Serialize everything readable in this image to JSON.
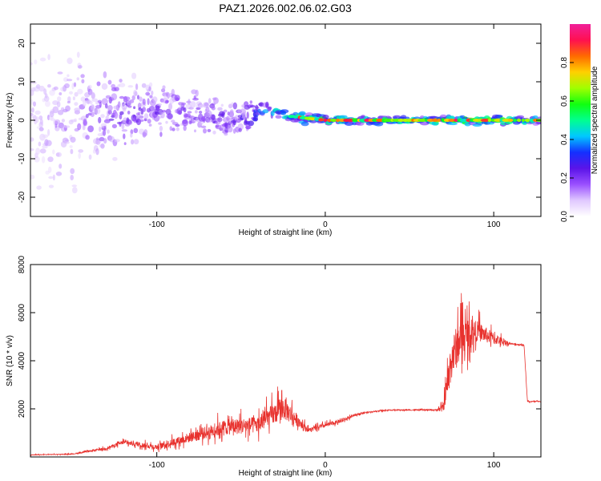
{
  "chart_data": [
    {
      "type": "heatmap",
      "title": "PAZ1.2026.002.06.02.G03",
      "xlabel": "Height of straight line (km)",
      "ylabel": "Frequency (Hz)",
      "xlim": [
        -175,
        128
      ],
      "ylim": [
        -25,
        25
      ],
      "xticks": [
        -100,
        0,
        100
      ],
      "xtick_labels": [
        "-100",
        "0",
        "100"
      ],
      "yticks": [
        -20,
        -10,
        0,
        10,
        20
      ],
      "ytick_labels": [
        "-20",
        "-10",
        "0",
        "10",
        "20"
      ],
      "colorbar": {
        "label": "Normalized spectral amplitude",
        "range": [
          0,
          1
        ],
        "ticks": [
          0.0,
          0.2,
          0.4,
          0.6,
          0.8
        ],
        "tick_labels": [
          "0.0",
          "0.2",
          "0.4",
          "0.6",
          "0.8"
        ],
        "colors": [
          "#ffffff",
          "#e0c8ff",
          "#9a50ff",
          "#5a14e8",
          "#1430ff",
          "#00c8ff",
          "#00ff90",
          "#10ff10",
          "#a0ff00",
          "#ffd000",
          "#ff6a00",
          "#ff1050",
          "#f0209a"
        ]
      },
      "frequency_band": {
        "x": [
          -175,
          -150,
          -125,
          -100,
          -75,
          -50,
          -35,
          -20,
          0,
          50,
          75,
          100,
          128
        ],
        "center": [
          0,
          1,
          2,
          2,
          1,
          0,
          3,
          1,
          0,
          0,
          0,
          0,
          0
        ],
        "half_width": [
          24,
          22,
          14,
          10,
          8,
          6,
          3,
          2,
          1.5,
          1.5,
          1.5,
          1.5,
          1.5
        ],
        "peak_amplitude": [
          0.12,
          0.18,
          0.25,
          0.25,
          0.25,
          0.3,
          0.45,
          0.6,
          0.7,
          0.6,
          0.75,
          0.7,
          0.55
        ]
      }
    },
    {
      "type": "line",
      "xlabel": "Height of straight line (km)",
      "ylabel": "SNR (10 * v/v)",
      "xlim": [
        -175,
        128
      ],
      "ylim": [
        0,
        8000
      ],
      "xticks": [
        -100,
        0,
        100
      ],
      "xtick_labels": [
        "-100",
        "0",
        "100"
      ],
      "yticks": [
        2000,
        4000,
        6000,
        8000
      ],
      "ytick_labels": [
        "2000",
        "4000",
        "6000",
        "8000"
      ],
      "series": [
        {
          "name": "SNR",
          "color": "#e8322e",
          "x": [
            -175,
            -150,
            -130,
            -120,
            -100,
            -80,
            -60,
            -40,
            -25,
            -15,
            -10,
            0,
            10,
            20,
            30,
            40,
            50,
            60,
            65,
            70,
            75,
            80,
            90,
            100,
            110,
            118,
            120,
            128
          ],
          "y": [
            80,
            120,
            350,
            600,
            400,
            800,
            1200,
            1300,
            2000,
            1400,
            1100,
            1300,
            1500,
            1800,
            1900,
            1950,
            1950,
            1950,
            1950,
            2000,
            4000,
            4800,
            5200,
            4900,
            4700,
            4650,
            2300,
            2300
          ],
          "noise": [
            40,
            40,
            150,
            250,
            300,
            600,
            900,
            1000,
            1400,
            600,
            250,
            250,
            200,
            100,
            60,
            60,
            60,
            60,
            60,
            500,
            2500,
            2500,
            1200,
            700,
            100,
            80,
            60,
            60
          ]
        }
      ]
    }
  ]
}
